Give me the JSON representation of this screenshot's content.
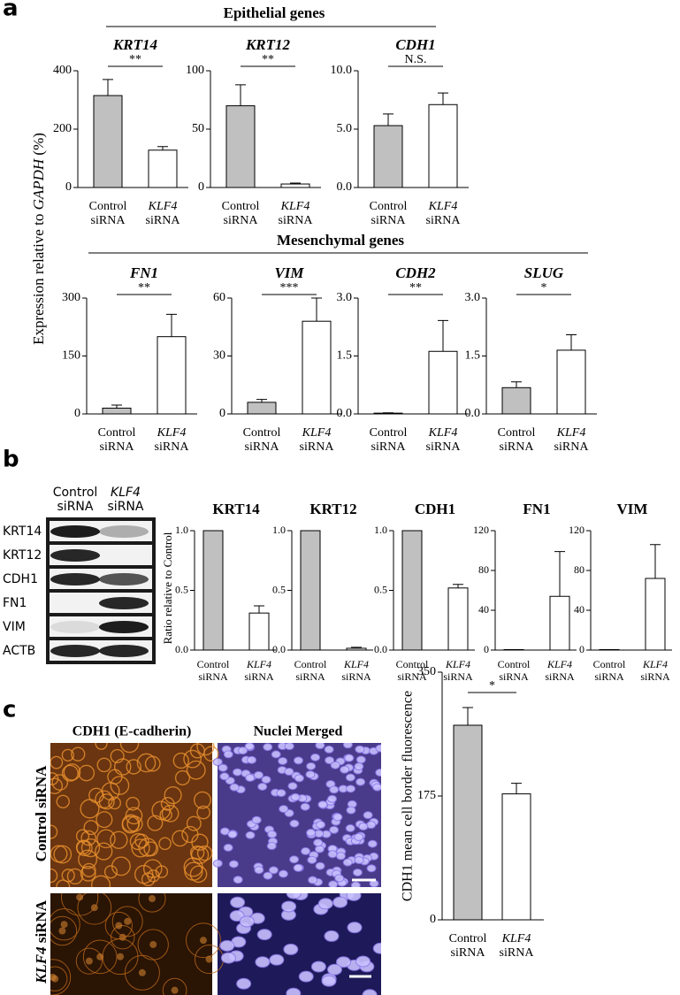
{
  "panel_a": {
    "label": "a",
    "groups": [
      "Epithelial genes",
      "Mesenchymal genes"
    ],
    "y_label": [
      "Expression relative to ",
      "GAPDH",
      " (%)"
    ]
  },
  "panel_b": {
    "label": "b",
    "blot": {
      "columns": [
        [
          "Control",
          "siRNA"
        ],
        [
          "KLF4",
          "siRNA"
        ]
      ],
      "rows": [
        "KRT14",
        "KRT12",
        "CDH1",
        "FN1",
        "VIM",
        "ACTB"
      ]
    },
    "y_label": "Ratio relative to Control"
  },
  "panel_c": {
    "label": "c",
    "image_columns": [
      "CDH1 (E-cadherin)",
      "Nuclei Merged"
    ],
    "image_rows": [
      [
        "Control siRNA"
      ],
      [
        "KLF4",
        " siRNA"
      ]
    ],
    "y_label": "CDH1 mean  cell border fluorescence"
  },
  "chart_data": [
    {
      "type": "bar",
      "title": "KRT14",
      "categories": [
        [
          "Control",
          "siRNA"
        ],
        [
          "KLF4",
          "siRNA"
        ]
      ],
      "values": [
        315,
        128
      ],
      "errors": [
        55,
        12
      ],
      "colors": [
        "#c0c0c0",
        "#ffffff"
      ],
      "ylim": [
        0,
        400
      ],
      "yticks": [
        0,
        200,
        400
      ],
      "significance": "**"
    },
    {
      "type": "bar",
      "title": "KRT12",
      "categories": [
        [
          "Control",
          "siRNA"
        ],
        [
          "KLF4",
          "siRNA"
        ]
      ],
      "values": [
        70,
        3
      ],
      "errors": [
        18,
        0.8
      ],
      "colors": [
        "#c0c0c0",
        "#ffffff"
      ],
      "ylim": [
        0,
        100
      ],
      "yticks": [
        0,
        50,
        100
      ],
      "significance": "**"
    },
    {
      "type": "bar",
      "title": "CDH1",
      "categories": [
        [
          "Control",
          "siRNA"
        ],
        [
          "KLF4",
          "siRNA"
        ]
      ],
      "values": [
        5.3,
        7.1
      ],
      "errors": [
        1.0,
        1.0
      ],
      "colors": [
        "#c0c0c0",
        "#ffffff"
      ],
      "ylim": [
        0,
        10
      ],
      "yticks": [
        {
          "value": 0,
          "label": "0.0"
        },
        {
          "value": 5,
          "label": "5.0"
        },
        {
          "value": 10,
          "label": "10.0"
        }
      ],
      "significance": "N.S."
    },
    {
      "type": "bar",
      "title": "FN1",
      "categories": [
        [
          "Control",
          "siRNA"
        ],
        [
          "KLF4",
          "siRNA"
        ]
      ],
      "values": [
        15,
        200
      ],
      "errors": [
        8,
        58
      ],
      "colors": [
        "#c0c0c0",
        "#ffffff"
      ],
      "ylim": [
        0,
        300
      ],
      "yticks": [
        0,
        150,
        300
      ],
      "significance": "**"
    },
    {
      "type": "bar",
      "title": "VIM",
      "categories": [
        [
          "Control",
          "siRNA"
        ],
        [
          "KLF4",
          "siRNA"
        ]
      ],
      "values": [
        6,
        48
      ],
      "errors": [
        1.5,
        12
      ],
      "colors": [
        "#c0c0c0",
        "#ffffff"
      ],
      "ylim": [
        0,
        60
      ],
      "yticks": [
        0,
        30,
        60
      ],
      "significance": "***"
    },
    {
      "type": "bar",
      "title": "CDH2",
      "categories": [
        [
          "Control",
          "siRNA"
        ],
        [
          "KLF4",
          "siRNA"
        ]
      ],
      "values": [
        0.02,
        1.62
      ],
      "errors": [
        0.01,
        0.8
      ],
      "colors": [
        "#c0c0c0",
        "#ffffff"
      ],
      "ylim": [
        0,
        3
      ],
      "yticks": [
        {
          "value": 0,
          "label": "0.0"
        },
        {
          "value": 1.5,
          "label": "1.5"
        },
        {
          "value": 3,
          "label": "3.0"
        }
      ],
      "significance": "**"
    },
    {
      "type": "bar",
      "title": "SLUG",
      "categories": [
        [
          "Control",
          "siRNA"
        ],
        [
          "KLF4",
          "siRNA"
        ]
      ],
      "values": [
        0.68,
        1.65
      ],
      "errors": [
        0.15,
        0.4
      ],
      "colors": [
        "#c0c0c0",
        "#ffffff"
      ],
      "ylim": [
        0,
        3
      ],
      "yticks": [
        {
          "value": 0,
          "label": "0.0"
        },
        {
          "value": 1.5,
          "label": "1.5"
        },
        {
          "value": 3,
          "label": "3.0"
        }
      ],
      "significance": "*"
    },
    {
      "type": "bar",
      "title": "KRT14",
      "categories": [
        [
          "Control",
          "siRNA"
        ],
        [
          "KLF4",
          "siRNA"
        ]
      ],
      "values": [
        1,
        0.31
      ],
      "errors": [
        null,
        0.06
      ],
      "colors": [
        "#c0c0c0",
        "#ffffff"
      ],
      "ylim": [
        0,
        1
      ],
      "yticks": [
        {
          "value": 0,
          "label": "0.0"
        },
        {
          "value": 0.5,
          "label": "0.5"
        },
        {
          "value": 1,
          "label": "1.0"
        }
      ]
    },
    {
      "type": "bar",
      "title": "KRT12",
      "categories": [
        [
          "Control",
          "siRNA"
        ],
        [
          "KLF4",
          "siRNA"
        ]
      ],
      "values": [
        1,
        0.015
      ],
      "errors": [
        null,
        0.008
      ],
      "colors": [
        "#c0c0c0",
        "#ffffff"
      ],
      "ylim": [
        0,
        1
      ],
      "yticks": [
        {
          "value": 0,
          "label": "0.0"
        },
        {
          "value": 0.5,
          "label": "0.5"
        },
        {
          "value": 1,
          "label": "1.0"
        }
      ]
    },
    {
      "type": "bar",
      "title": "CDH1",
      "categories": [
        [
          "Control",
          "siRNA"
        ],
        [
          "KLF4",
          "siRNA"
        ]
      ],
      "values": [
        1,
        0.52
      ],
      "errors": [
        null,
        0.03
      ],
      "colors": [
        "#c0c0c0",
        "#ffffff"
      ],
      "ylim": [
        0,
        1
      ],
      "yticks": [
        {
          "value": 0,
          "label": "0.0"
        },
        {
          "value": 0.5,
          "label": "0.5"
        },
        {
          "value": 1,
          "label": "1.0"
        }
      ]
    },
    {
      "type": "bar",
      "title": "FN1",
      "categories": [
        [
          "Control",
          "siRNA"
        ],
        [
          "KLF4",
          "siRNA"
        ]
      ],
      "values": [
        0.5,
        54
      ],
      "errors": [
        null,
        45
      ],
      "colors": [
        "#c0c0c0",
        "#ffffff"
      ],
      "ylim": [
        0,
        120
      ],
      "yticks": [
        0,
        40,
        80,
        120
      ]
    },
    {
      "type": "bar",
      "title": "VIM",
      "categories": [
        [
          "Control",
          "siRNA"
        ],
        [
          "KLF4",
          "siRNA"
        ]
      ],
      "values": [
        0.5,
        72
      ],
      "errors": [
        null,
        34
      ],
      "colors": [
        "#c0c0c0",
        "#ffffff"
      ],
      "ylim": [
        0,
        120
      ],
      "yticks": [
        0,
        40,
        80,
        120
      ]
    },
    {
      "type": "bar",
      "categories": [
        [
          "Control",
          "siRNA"
        ],
        [
          "KLF4",
          "siRNA"
        ]
      ],
      "values": [
        275,
        178
      ],
      "errors": [
        25,
        15
      ],
      "colors": [
        "#c0c0c0",
        "#ffffff"
      ],
      "ylim": [
        0,
        350
      ],
      "yticks": [
        0,
        175,
        350
      ],
      "significance": "*"
    }
  ]
}
